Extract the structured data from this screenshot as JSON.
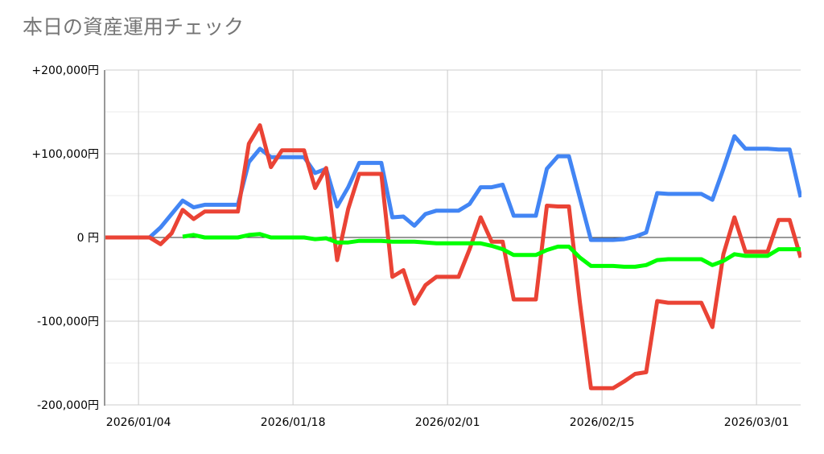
{
  "chart_data": {
    "type": "line",
    "title": "本日の資産運用チェック",
    "x": [
      "2026/01/01",
      "2026/01/02",
      "2026/01/03",
      "2026/01/04",
      "2026/01/05",
      "2026/01/06",
      "2026/01/07",
      "2026/01/08",
      "2026/01/09",
      "2026/01/10",
      "2026/01/11",
      "2026/01/12",
      "2026/01/13",
      "2026/01/14",
      "2026/01/15",
      "2026/01/16",
      "2026/01/17",
      "2026/01/18",
      "2026/01/19",
      "2026/01/20",
      "2026/01/21",
      "2026/01/22",
      "2026/01/23",
      "2026/01/24",
      "2026/01/25",
      "2026/01/26",
      "2026/01/27",
      "2026/01/28",
      "2026/01/29",
      "2026/01/30",
      "2026/01/31",
      "2026/02/01",
      "2026/02/02",
      "2026/02/03",
      "2026/02/04",
      "2026/02/05",
      "2026/02/06",
      "2026/02/07",
      "2026/02/08",
      "2026/02/09",
      "2026/02/10",
      "2026/02/11",
      "2026/02/12",
      "2026/02/13",
      "2026/02/14",
      "2026/02/15",
      "2026/02/16",
      "2026/02/17",
      "2026/02/18",
      "2026/02/19",
      "2026/02/20",
      "2026/02/21",
      "2026/02/22",
      "2026/02/23",
      "2026/02/24",
      "2026/02/25",
      "2026/02/26",
      "2026/02/27",
      "2026/02/28",
      "2026/03/01",
      "2026/03/02",
      "2026/03/03",
      "2026/03/04",
      "2026/03/05"
    ],
    "series": [
      {
        "color": "#4285f4",
        "values": [
          0,
          0,
          0,
          0,
          0,
          12000,
          28000,
          44000,
          36000,
          39000,
          39000,
          39000,
          39000,
          90000,
          106000,
          96000,
          96000,
          96000,
          96000,
          77000,
          82000,
          37000,
          60000,
          89000,
          89000,
          89000,
          24000,
          25000,
          14000,
          28000,
          32000,
          32000,
          32000,
          40000,
          60000,
          60000,
          63000,
          26000,
          26000,
          26000,
          82000,
          97000,
          97000,
          47000,
          -3000,
          -3000,
          -3000,
          -2000,
          1000,
          6000,
          53000,
          52000,
          52000,
          52000,
          52000,
          45000,
          82000,
          121000,
          106000,
          106000,
          106000,
          105000,
          105000,
          48000
        ]
      },
      {
        "color": "#ea4335",
        "values": [
          0,
          0,
          0,
          0,
          0,
          -8000,
          5000,
          33000,
          22000,
          31000,
          31000,
          31000,
          31000,
          112000,
          134000,
          84000,
          104000,
          104000,
          104000,
          59000,
          83000,
          -27000,
          34000,
          76000,
          76000,
          76000,
          -47000,
          -39000,
          -79000,
          -57000,
          -47000,
          -47000,
          -47000,
          -14000,
          24000,
          -5000,
          -5000,
          -74000,
          -74000,
          -74000,
          38000,
          37000,
          37000,
          -78000,
          -180000,
          -180000,
          -180000,
          -172000,
          -163000,
          -161000,
          -76000,
          -78000,
          -78000,
          -78000,
          -78000,
          -107000,
          -20000,
          24000,
          -17000,
          -17000,
          -17000,
          21000,
          21000,
          -24000
        ]
      },
      {
        "color": "#00ff00",
        "values": [
          null,
          null,
          null,
          null,
          null,
          null,
          null,
          1000,
          3000,
          0,
          0,
          0,
          0,
          3000,
          4000,
          0,
          0,
          0,
          0,
          -2000,
          -1000,
          -6000,
          -6000,
          -4000,
          -4000,
          -4000,
          -5000,
          -5000,
          -5000,
          -6000,
          -7000,
          -7000,
          -7000,
          -7000,
          -7000,
          -10000,
          -14000,
          -21000,
          -21000,
          -21000,
          -15000,
          -11000,
          -11000,
          -24000,
          -34000,
          -34000,
          -34000,
          -35000,
          -35000,
          -33000,
          -27000,
          -26000,
          -26000,
          -26000,
          -26000,
          -33000,
          -28000,
          -20000,
          -22000,
          -22000,
          -22000,
          -14000,
          -14000,
          -14000
        ]
      }
    ],
    "xlim": [
      "2026/01/01",
      "2026/03/05"
    ],
    "xticks": [
      "2026/01/04",
      "2026/01/18",
      "2026/02/01",
      "2026/02/15",
      "2026/03/01"
    ],
    "ylim": [
      -200000,
      200000
    ],
    "yticks": [
      {
        "value": 200000,
        "label": "+200,000円"
      },
      {
        "value": 100000,
        "label": "+100,000円"
      },
      {
        "value": 0,
        "label": "0 円"
      },
      {
        "value": -100000,
        "label": "-100,000円"
      },
      {
        "value": -200000,
        "label": "-200,000円"
      }
    ],
    "minor_yticks": [
      150000,
      50000,
      -50000,
      -150000
    ],
    "grid": true
  }
}
